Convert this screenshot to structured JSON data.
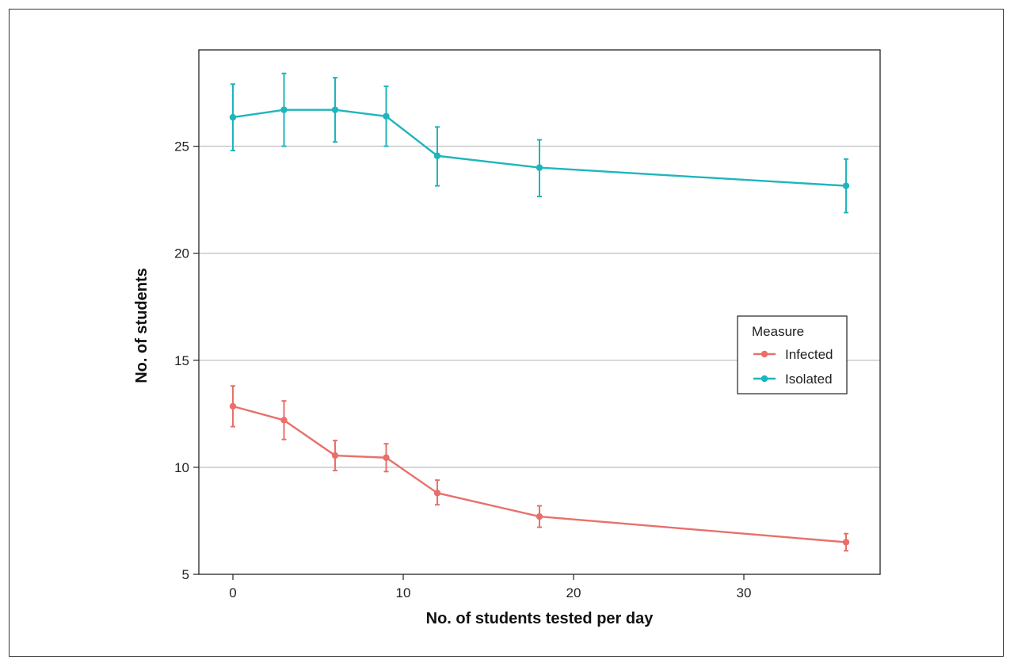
{
  "chart_data": {
    "type": "line",
    "xlabel": "No. of students tested per day",
    "ylabel": "No. of students",
    "xlim": [
      -2,
      38
    ],
    "ylim": [
      5,
      29.5
    ],
    "x_ticks": [
      0,
      10,
      20,
      30
    ],
    "y_ticks": [
      5,
      10,
      15,
      20,
      25
    ],
    "grid": "horizontal",
    "legend": {
      "title": "Measure",
      "position": "right"
    },
    "x": [
      0,
      3,
      6,
      9,
      12,
      18,
      36
    ],
    "series": [
      {
        "name": "Infected",
        "color": "#e8706b",
        "values": [
          12.85,
          12.2,
          10.55,
          10.45,
          8.8,
          7.7,
          6.5
        ],
        "lower": [
          11.9,
          11.3,
          9.85,
          9.8,
          8.25,
          7.2,
          6.1
        ],
        "upper": [
          13.8,
          13.1,
          11.25,
          11.1,
          9.4,
          8.2,
          6.9
        ]
      },
      {
        "name": "Isolated",
        "color": "#1fb5bd",
        "values": [
          26.35,
          26.7,
          26.7,
          26.4,
          24.55,
          24.0,
          23.15
        ],
        "lower": [
          24.8,
          25.0,
          25.2,
          25.0,
          23.15,
          22.65,
          21.9
        ],
        "upper": [
          27.9,
          28.4,
          28.2,
          27.8,
          25.9,
          25.3,
          24.4
        ]
      }
    ]
  }
}
